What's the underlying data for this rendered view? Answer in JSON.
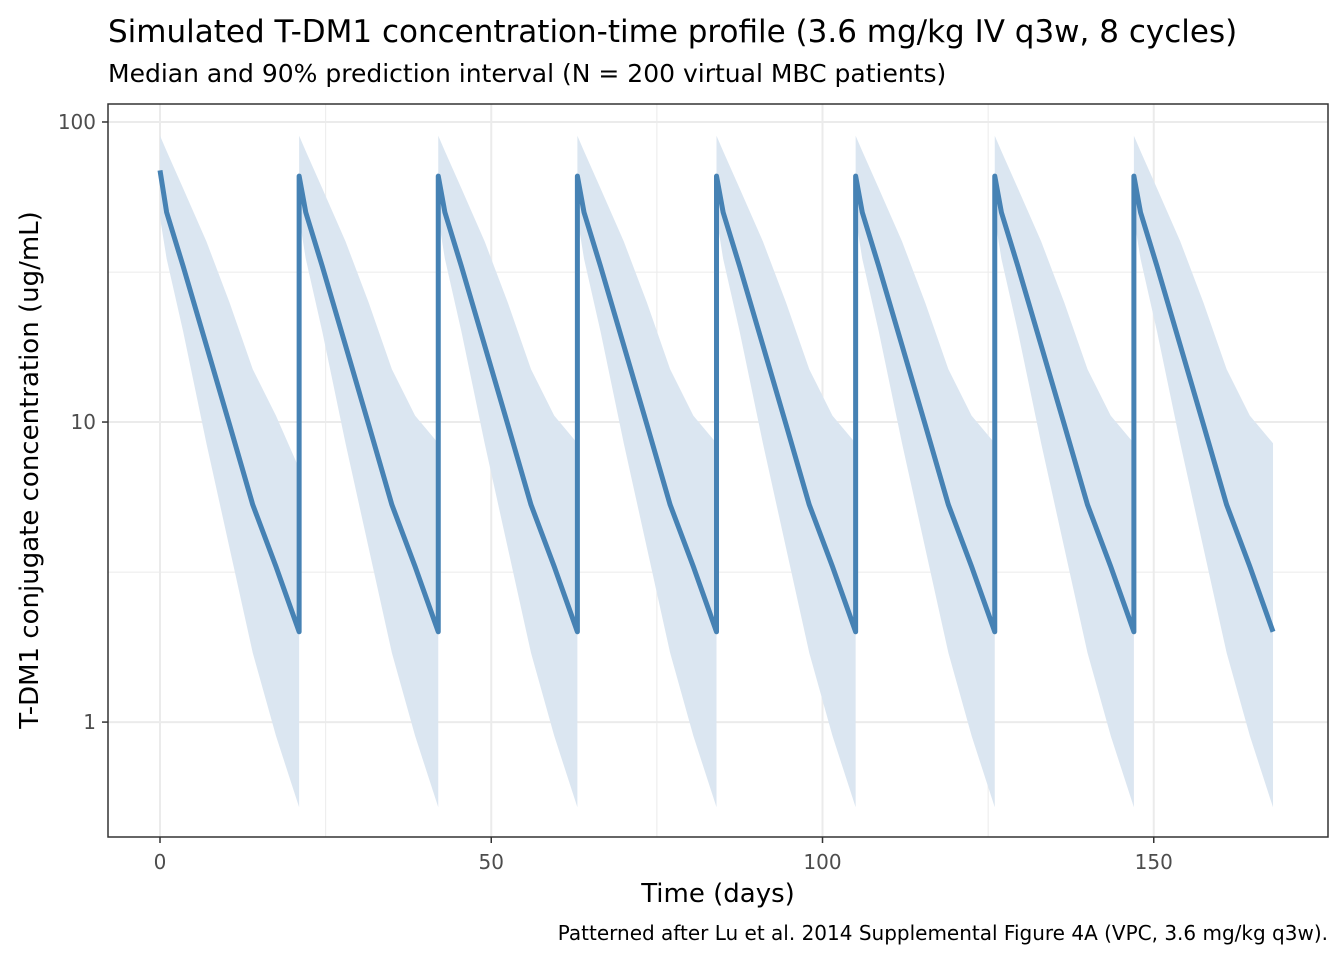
{
  "chart_data": {
    "type": "line",
    "title": "Simulated T-DM1 concentration-time profile (3.6 mg/kg IV q3w, 8 cycles)",
    "subtitle": "Median and 90% prediction interval (N = 200 virtual MBC patients)",
    "x_label": "Time (days)",
    "y_label": "T-DM1 conjugate concentration (ug/mL)",
    "caption": "Patterned after Lu et al. 2014 Supplemental Figure 4A (VPC, 3.6 mg/kg q3w).",
    "x": [
      0,
      1,
      3.5,
      7,
      10.5,
      14,
      17.5,
      21,
      21,
      22,
      24.5,
      28,
      31.5,
      35,
      38.5,
      42,
      42,
      43,
      45.5,
      49,
      52.5,
      56,
      59.5,
      63,
      63,
      64,
      66.5,
      70,
      73.5,
      77,
      80.5,
      84,
      84,
      85,
      87.5,
      91,
      94.5,
      98,
      101.5,
      105,
      105,
      106,
      108.5,
      112,
      115.5,
      119,
      122.5,
      126,
      126,
      127,
      129.5,
      133,
      136.5,
      140,
      143.5,
      147,
      147,
      148,
      150.5,
      154,
      157.5,
      161,
      164.5,
      168
    ],
    "series": [
      {
        "color": "#4682b4",
        "values": [
          69,
          50,
          33,
          18,
          9.8,
          5.3,
          3.3,
          2.0,
          66,
          50,
          33,
          18,
          9.8,
          5.3,
          3.3,
          2.0,
          66,
          50,
          33,
          18,
          9.8,
          5.3,
          3.3,
          2.0,
          66,
          50,
          33,
          18,
          9.8,
          5.3,
          3.3,
          2.0,
          66,
          50,
          33,
          18,
          9.8,
          5.3,
          3.3,
          2.0,
          66,
          50,
          33,
          18,
          9.8,
          5.3,
          3.3,
          2.0,
          66,
          50,
          33,
          18,
          9.8,
          5.3,
          3.3,
          2.0,
          66,
          50,
          33,
          18,
          9.8,
          5.3,
          3.3,
          2.0
        ]
      }
    ],
    "band": {
      "color": "#dbe6f1",
      "upper": [
        90,
        80,
        60,
        40,
        25,
        15,
        10.5,
        7,
        90,
        80,
        60,
        40,
        25,
        15,
        10.5,
        8.5,
        90,
        80,
        60,
        40,
        25,
        15,
        10.5,
        8.5,
        90,
        80,
        60,
        40,
        25,
        15,
        10.5,
        8.5,
        90,
        80,
        60,
        40,
        25,
        15,
        10.5,
        8.5,
        90,
        80,
        60,
        40,
        25,
        15,
        10.5,
        8.5,
        90,
        80,
        60,
        40,
        25,
        15,
        10.5,
        8.5,
        90,
        80,
        60,
        40,
        25,
        15,
        10.5,
        8.5
      ],
      "lower": [
        48,
        35,
        20,
        8.5,
        3.8,
        1.7,
        0.9,
        0.52,
        48,
        35,
        20,
        8.5,
        3.8,
        1.7,
        0.9,
        0.52,
        48,
        35,
        20,
        8.5,
        3.8,
        1.7,
        0.9,
        0.52,
        48,
        35,
        20,
        8.5,
        3.8,
        1.7,
        0.9,
        0.52,
        48,
        35,
        20,
        8.5,
        3.8,
        1.7,
        0.9,
        0.52,
        48,
        35,
        20,
        8.5,
        3.8,
        1.7,
        0.9,
        0.52,
        48,
        35,
        20,
        8.5,
        3.8,
        1.7,
        0.9,
        0.52,
        48,
        35,
        20,
        8.5,
        3.8,
        1.7,
        0.9,
        0.52
      ]
    },
    "xlim": [
      -7.85,
      176.3
    ],
    "xticks": [
      0,
      50,
      100,
      150
    ],
    "x_minor_ticks": [
      25,
      75,
      125
    ],
    "ylim": [
      0.414,
      114.8
    ],
    "yticks": [
      1,
      10,
      100
    ],
    "y_minor_ticks": [
      3.16,
      31.6
    ],
    "ylog": true,
    "grid": true
  }
}
